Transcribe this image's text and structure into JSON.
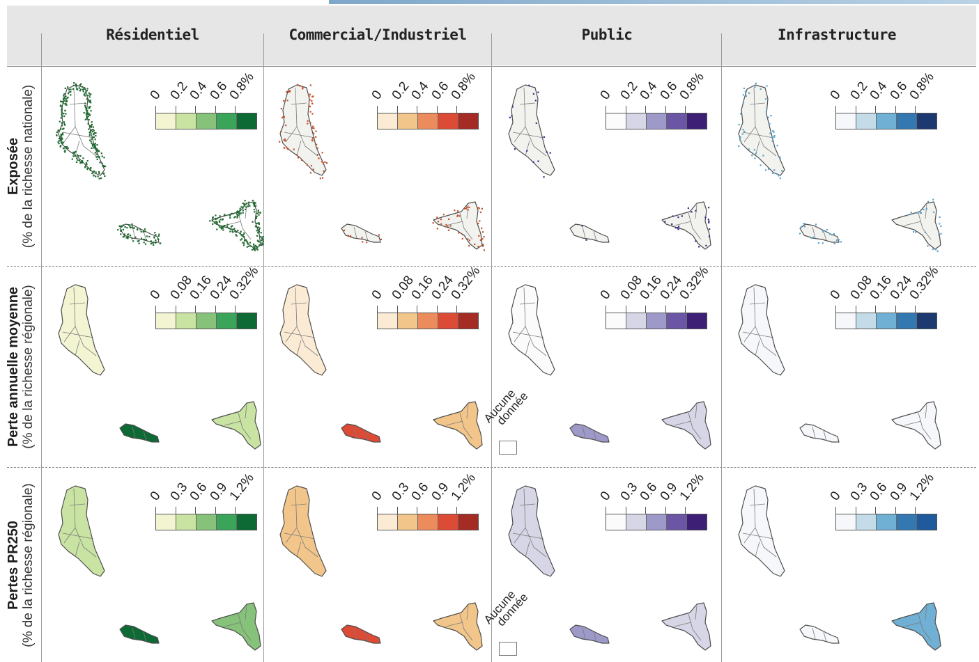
{
  "columns": [
    {
      "id": "res",
      "title": "Résidentiel",
      "colors": [
        "#f2f4d2",
        "#c9e3a3",
        "#86c27a",
        "#3aa55a",
        "#0d6a34"
      ]
    },
    {
      "id": "com",
      "title": "Commercial/Industriel",
      "colors": [
        "#fbebd4",
        "#f2c68b",
        "#ec8c5d",
        "#db4b35",
        "#a52c24"
      ]
    },
    {
      "id": "pub",
      "title": "Public",
      "colors": [
        "#fbfbfc",
        "#d6d6e6",
        "#9d9ac9",
        "#6a56a4",
        "#3d1f76"
      ]
    },
    {
      "id": "inf",
      "title": "Infrastructure",
      "colors": [
        "#f5f7fa",
        "#c4dbe8",
        "#6fb0d4",
        "#3478b2",
        "#1c3a6f"
      ]
    }
  ],
  "rows": [
    {
      "id": "exp",
      "title": "Exposée",
      "subtitle": "(% de la richesse nationale)",
      "ticks": [
        "0",
        "0.2",
        "0.4",
        "0.6",
        "0.8%"
      ]
    },
    {
      "id": "pam",
      "title": "Perte annuelle moyenne",
      "subtitle": "(% de la richesse régionale)",
      "ticks": [
        "0",
        "0.08",
        "0.16",
        "0.24",
        "0.32%"
      ]
    },
    {
      "id": "pr",
      "title": "Pertes PR250",
      "subtitle": "(% de la richesse régionale)",
      "ticks": [
        "0",
        "0.3",
        "0.6",
        "0.9",
        "1.2%"
      ]
    }
  ],
  "last_cell_last_color": "#1f5a9c",
  "no_data": {
    "label_line1": "Aucune",
    "label_line2": "donnée"
  }
}
